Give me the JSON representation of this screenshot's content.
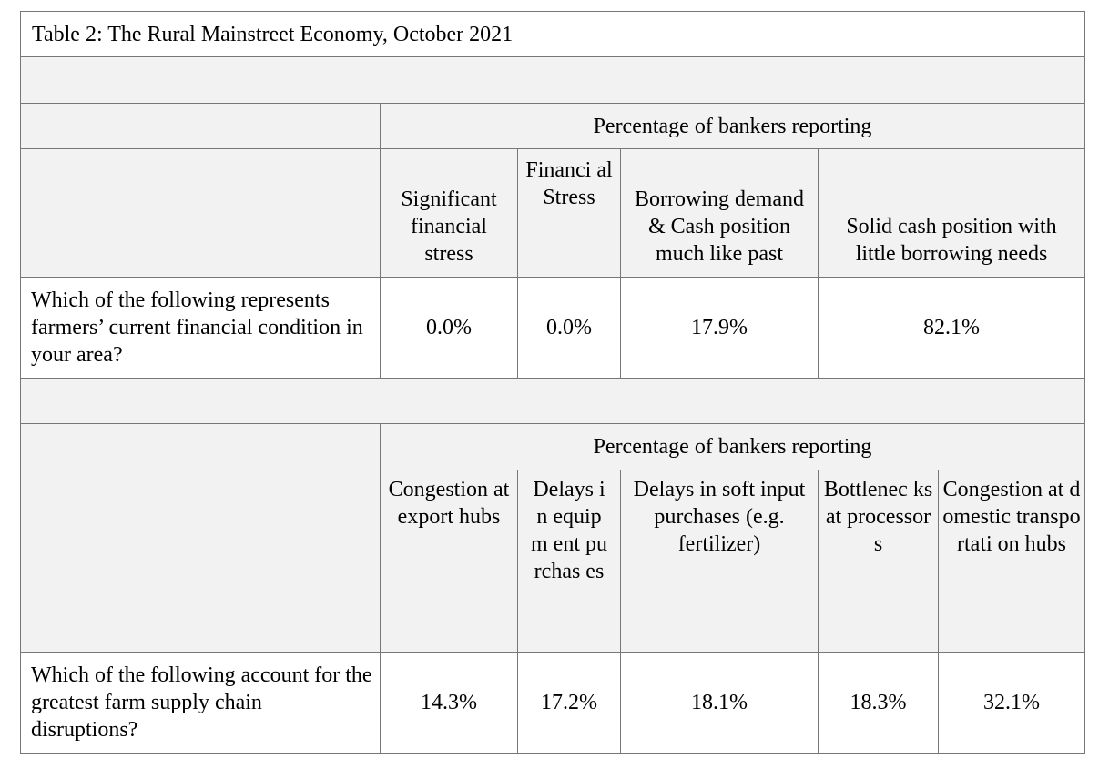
{
  "title": "Table 2:  The Rural Mainstreet Economy, October 2021",
  "section1": {
    "group_header": "Percentage of bankers reporting",
    "columns": [
      "Significant financial stress",
      "Financi al Stress",
      "Borrowing demand & Cash position much like past",
      "Solid cash position with little borrowing needs"
    ],
    "question": "Which of the following represents farmers’ current financial condition in your area?",
    "values": [
      "0.0%",
      "0.0%",
      "17.9%",
      "82.1%"
    ]
  },
  "section2": {
    "group_header": "Percentage of bankers reporting",
    "columns": [
      "Congestion at export hubs",
      "Delays in equipm ent purchas es",
      "Delays in soft input purchases (e.g. fertilizer)",
      "Bottlenec ks at processor s",
      "Congestion at domestic transportati on hubs"
    ],
    "question": "Which of the following account for the greatest farm supply chain disruptions?",
    "values": [
      "14.3%",
      "17.2%",
      "18.1%",
      "18.3%",
      "32.1%"
    ]
  }
}
